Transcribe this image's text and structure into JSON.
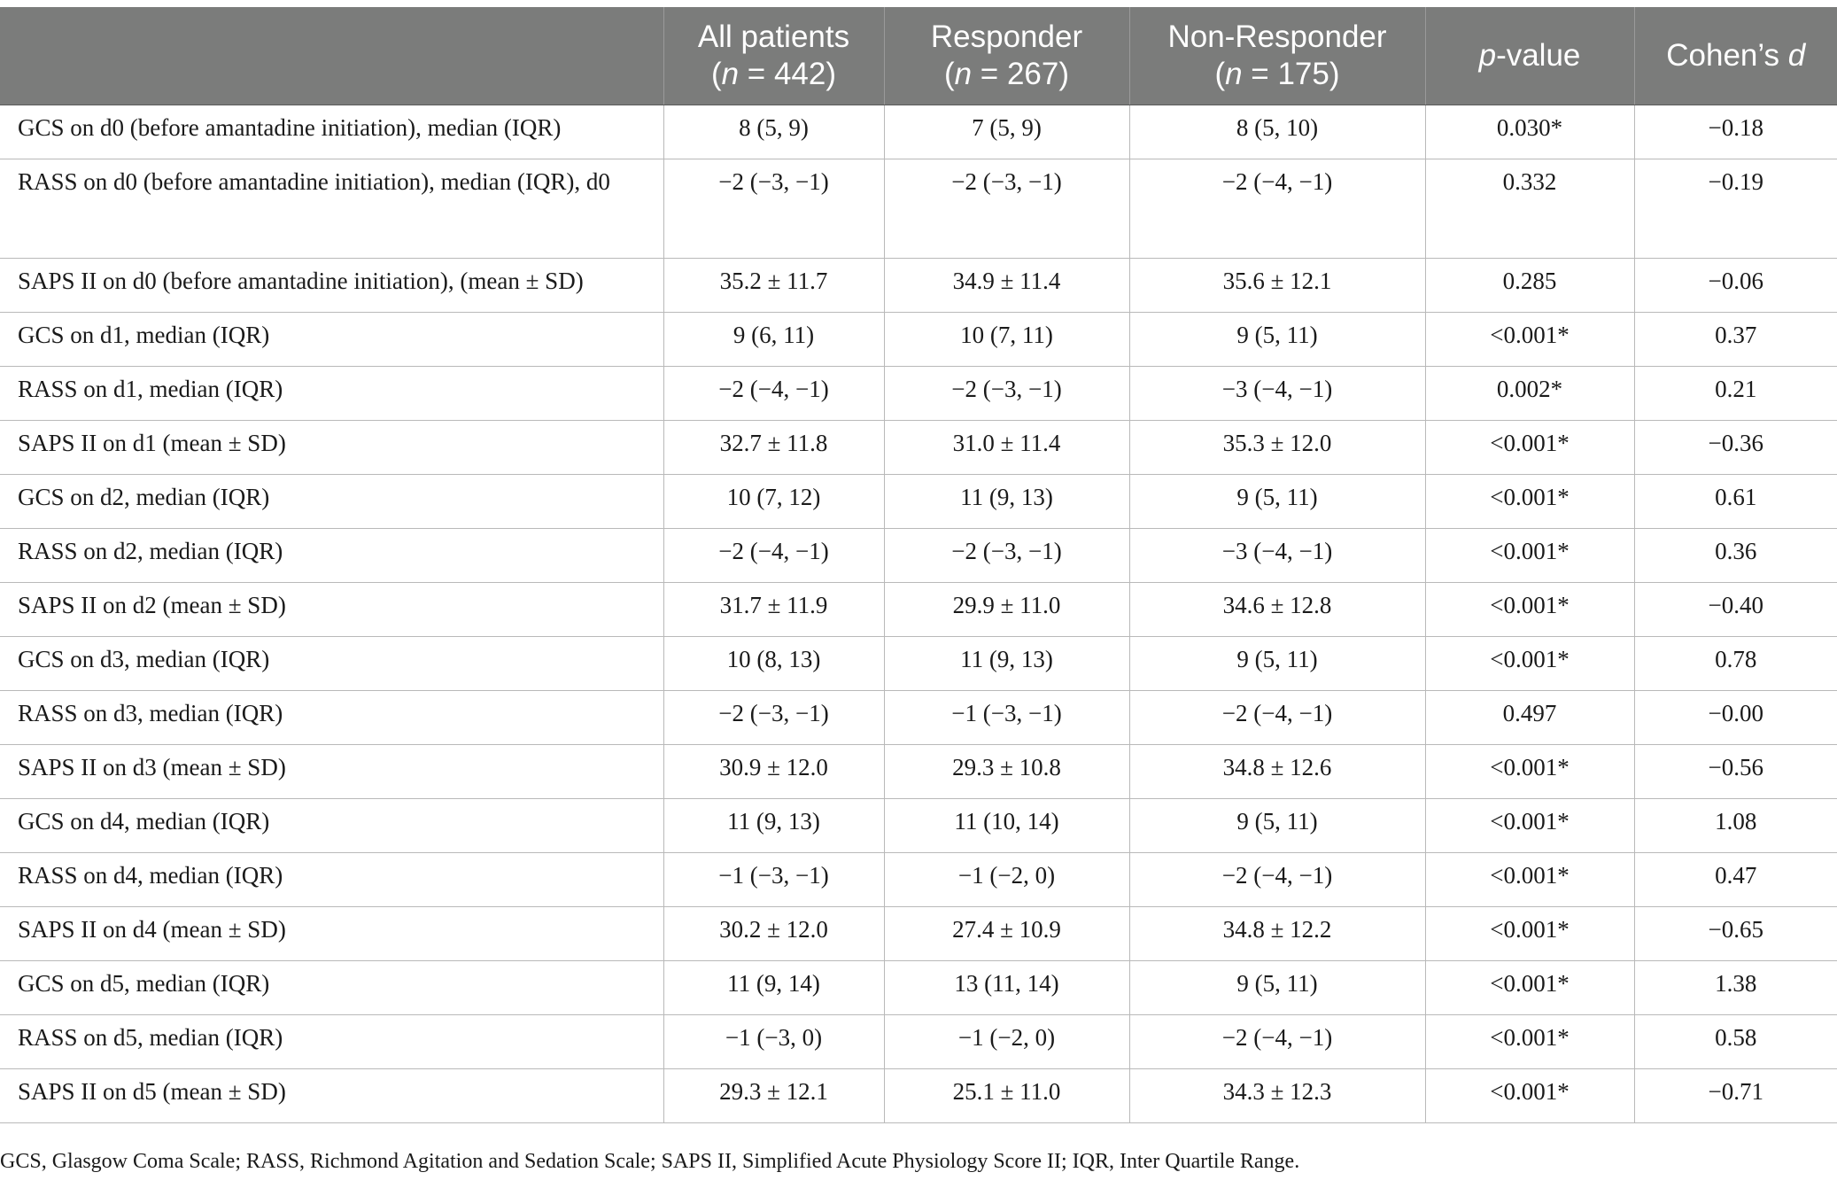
{
  "table": {
    "headers": [
      {
        "line1": "",
        "line2": ""
      },
      {
        "line1": "All patients",
        "n_var": "n",
        "n_rest": " = 442"
      },
      {
        "line1": "Responder",
        "n_var": "n",
        "n_rest": " = 267"
      },
      {
        "line1": "Non-Responder",
        "n_var": "n",
        "n_rest": " = 175"
      },
      {
        "italic_part": "p",
        "rest": "-value"
      },
      {
        "rest_before": "Cohen’s ",
        "italic_part": "d"
      }
    ],
    "rows": [
      {
        "label": "GCS on d0 (before amantadine initiation), median (IQR)",
        "all": "8 (5, 9)",
        "responder": "7 (5, 9)",
        "non_responder": "8 (5, 10)",
        "p": "0.030*",
        "d": "−0.18"
      },
      {
        "label": "RASS on d0 (before amantadine initiation), median (IQR), d0",
        "all": "−2 (−3, −1)",
        "responder": "−2 (−3, −1)",
        "non_responder": "−2 (−4, −1)",
        "p": "0.332",
        "d": "−0.19"
      },
      {
        "label": "SAPS II on d0 (before amantadine initiation), (mean ± SD)",
        "all": "35.2 ± 11.7",
        "responder": "34.9 ± 11.4",
        "non_responder": "35.6 ± 12.1",
        "p": "0.285",
        "d": "−0.06"
      },
      {
        "label": "GCS on d1, median (IQR)",
        "all": "9 (6, 11)",
        "responder": "10 (7, 11)",
        "non_responder": "9 (5, 11)",
        "p": "<0.001*",
        "d": "0.37"
      },
      {
        "label": "RASS on d1, median (IQR)",
        "all": "−2 (−4, −1)",
        "responder": "−2 (−3, −1)",
        "non_responder": "−3 (−4, −1)",
        "p": "0.002*",
        "d": "0.21"
      },
      {
        "label": "SAPS II on d1 (mean ± SD)",
        "all": "32.7 ± 11.8",
        "responder": "31.0 ± 11.4",
        "non_responder": "35.3 ± 12.0",
        "p": "<0.001*",
        "d": "−0.36"
      },
      {
        "label": "GCS on d2, median (IQR)",
        "all": "10 (7, 12)",
        "responder": "11 (9, 13)",
        "non_responder": "9 (5, 11)",
        "p": "<0.001*",
        "d": "0.61"
      },
      {
        "label": "RASS on d2, median (IQR)",
        "all": "−2 (−4, −1)",
        "responder": "−2 (−3, −1)",
        "non_responder": "−3 (−4, −1)",
        "p": "<0.001*",
        "d": "0.36"
      },
      {
        "label": "SAPS II on d2 (mean ± SD)",
        "all": "31.7 ± 11.9",
        "responder": "29.9 ± 11.0",
        "non_responder": "34.6 ± 12.8",
        "p": "<0.001*",
        "d": "−0.40"
      },
      {
        "label": "GCS on d3, median (IQR)",
        "all": "10 (8, 13)",
        "responder": "11 (9, 13)",
        "non_responder": "9 (5, 11)",
        "p": "<0.001*",
        "d": "0.78"
      },
      {
        "label": "RASS on d3, median (IQR)",
        "all": "−2 (−3, −1)",
        "responder": "−1 (−3, −1)",
        "non_responder": "−2 (−4, −1)",
        "p": "0.497",
        "d": "−0.00"
      },
      {
        "label": "SAPS II on d3 (mean ± SD)",
        "all": "30.9 ± 12.0",
        "responder": "29.3 ± 10.8",
        "non_responder": "34.8 ± 12.6",
        "p": "<0.001*",
        "d": "−0.56"
      },
      {
        "label": "GCS on d4, median (IQR)",
        "all": "11 (9, 13)",
        "responder": "11 (10, 14)",
        "non_responder": "9 (5, 11)",
        "p": "<0.001*",
        "d": "1.08"
      },
      {
        "label": "RASS on d4, median (IQR)",
        "all": "−1 (−3, −1)",
        "responder": "−1 (−2, 0)",
        "non_responder": "−2 (−4, −1)",
        "p": "<0.001*",
        "d": "0.47"
      },
      {
        "label": "SAPS II on d4 (mean ± SD)",
        "all": "30.2 ± 12.0",
        "responder": "27.4 ± 10.9",
        "non_responder": "34.8 ± 12.2",
        "p": "<0.001*",
        "d": "−0.65"
      },
      {
        "label": "GCS on d5, median (IQR)",
        "all": "11 (9, 14)",
        "responder": "13 (11, 14)",
        "non_responder": "9 (5, 11)",
        "p": "<0.001*",
        "d": "1.38"
      },
      {
        "label": "RASS on d5, median (IQR)",
        "all": "−1 (−3, 0)",
        "responder": "−1 (−2, 0)",
        "non_responder": "−2 (−4, −1)",
        "p": "<0.001*",
        "d": "0.58"
      },
      {
        "label": "SAPS II on d5 (mean ± SD)",
        "all": "29.3 ± 12.1",
        "responder": "25.1 ± 11.0",
        "non_responder": "34.3 ± 12.3",
        "p": "<0.001*",
        "d": "−0.71"
      }
    ]
  },
  "footnote": "GCS, Glasgow Coma Scale; RASS, Richmond Agitation and Sedation Scale; SAPS II, Simplified Acute Physiology Score II; IQR, Inter Quartile Range."
}
